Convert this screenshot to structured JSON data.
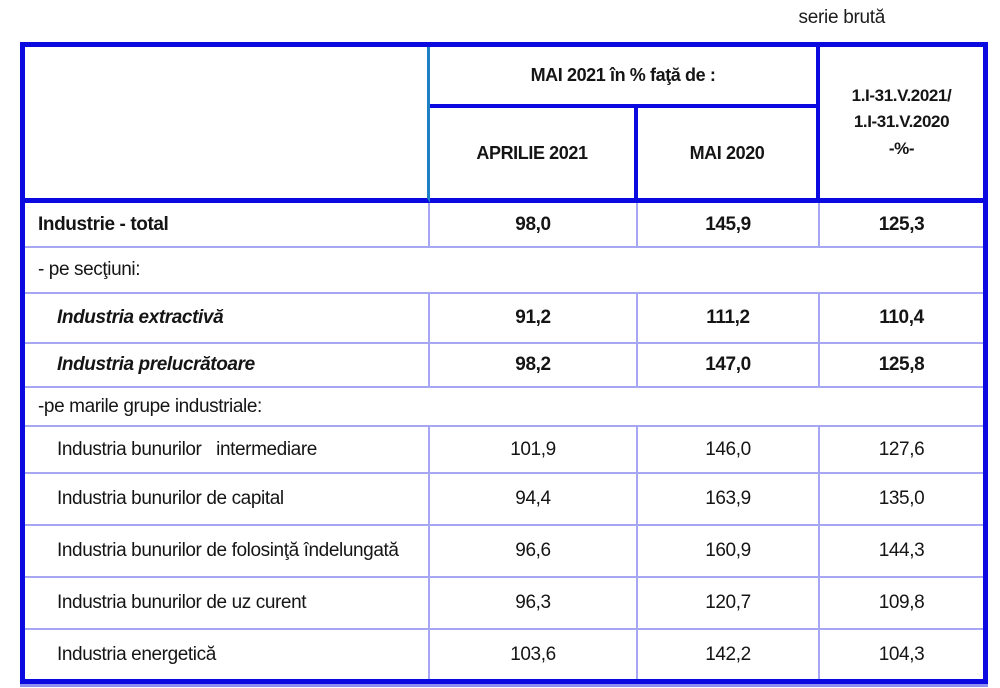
{
  "note": "serie brută",
  "header": {
    "group_title": "MAI 2021 în % faţă de :",
    "col_april": "APRILIE 2021",
    "col_may": "MAI 2020",
    "col_cumulative_line1": "1.I-31.V.2021/",
    "col_cumulative_line2": "1.I-31.V.2020",
    "col_cumulative_line3": "-%-"
  },
  "table": {
    "rows": [
      {
        "label": "Industrie - total",
        "values": [
          "98,0",
          "145,9",
          "125,3"
        ],
        "style": "total"
      },
      {
        "label": "- pe secţiuni:",
        "span": true
      },
      {
        "label": "Industria extractivă",
        "values": [
          "91,2",
          "111,2",
          "110,4"
        ],
        "style": "section-italic"
      },
      {
        "label": "Industria prelucrătoare",
        "values": [
          "98,2",
          "147,0",
          "125,8"
        ],
        "style": "section-italic"
      },
      {
        "label": "-pe marile grupe industriale:",
        "span": true
      },
      {
        "label": "Industria bunurilor   intermediare",
        "values": [
          "101,9",
          "146,0",
          "127,6"
        ]
      },
      {
        "label": "Industria bunurilor de capital",
        "values": [
          "94,4",
          "163,9",
          "135,0"
        ]
      },
      {
        "label": "Industria bunurilor de folosinţă îndelungată",
        "values": [
          "96,6",
          "160,9",
          "144,3"
        ]
      },
      {
        "label": "Industria bunurilor de uz curent",
        "values": [
          "96,3",
          "120,7",
          "109,8"
        ]
      },
      {
        "label": "Industria energetică",
        "values": [
          "103,6",
          "142,2",
          "104,3"
        ]
      }
    ]
  }
}
